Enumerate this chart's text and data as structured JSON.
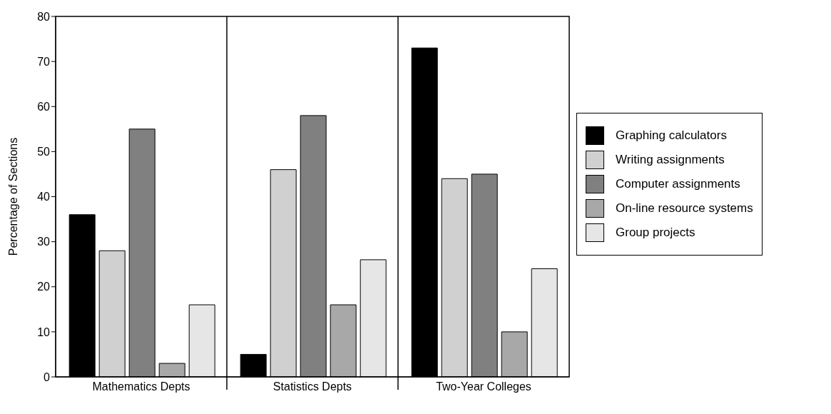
{
  "chart_data": {
    "type": "bar",
    "ylabel": "Percentage of Sections",
    "categories": [
      "Mathematics Depts",
      "Statistics Depts",
      "Two-Year Colleges"
    ],
    "series": [
      {
        "name": "Graphing calculators",
        "color": "#000000",
        "values": [
          36,
          5,
          73
        ]
      },
      {
        "name": "Writing assignments",
        "color": "#d0d0d0",
        "values": [
          28,
          46,
          44
        ]
      },
      {
        "name": "Computer assignments",
        "color": "#808080",
        "values": [
          55,
          58,
          45
        ]
      },
      {
        "name": "On-line resource systems",
        "color": "#a8a8a8",
        "values": [
          3,
          16,
          10
        ]
      },
      {
        "name": "Group projects",
        "color": "#e6e6e6",
        "values": [
          16,
          26,
          24
        ]
      }
    ],
    "ylim": [
      0,
      80
    ],
    "yticks": [
      0,
      10,
      20,
      30,
      40,
      50,
      60,
      70,
      80
    ],
    "grid": false,
    "legend": "right"
  }
}
